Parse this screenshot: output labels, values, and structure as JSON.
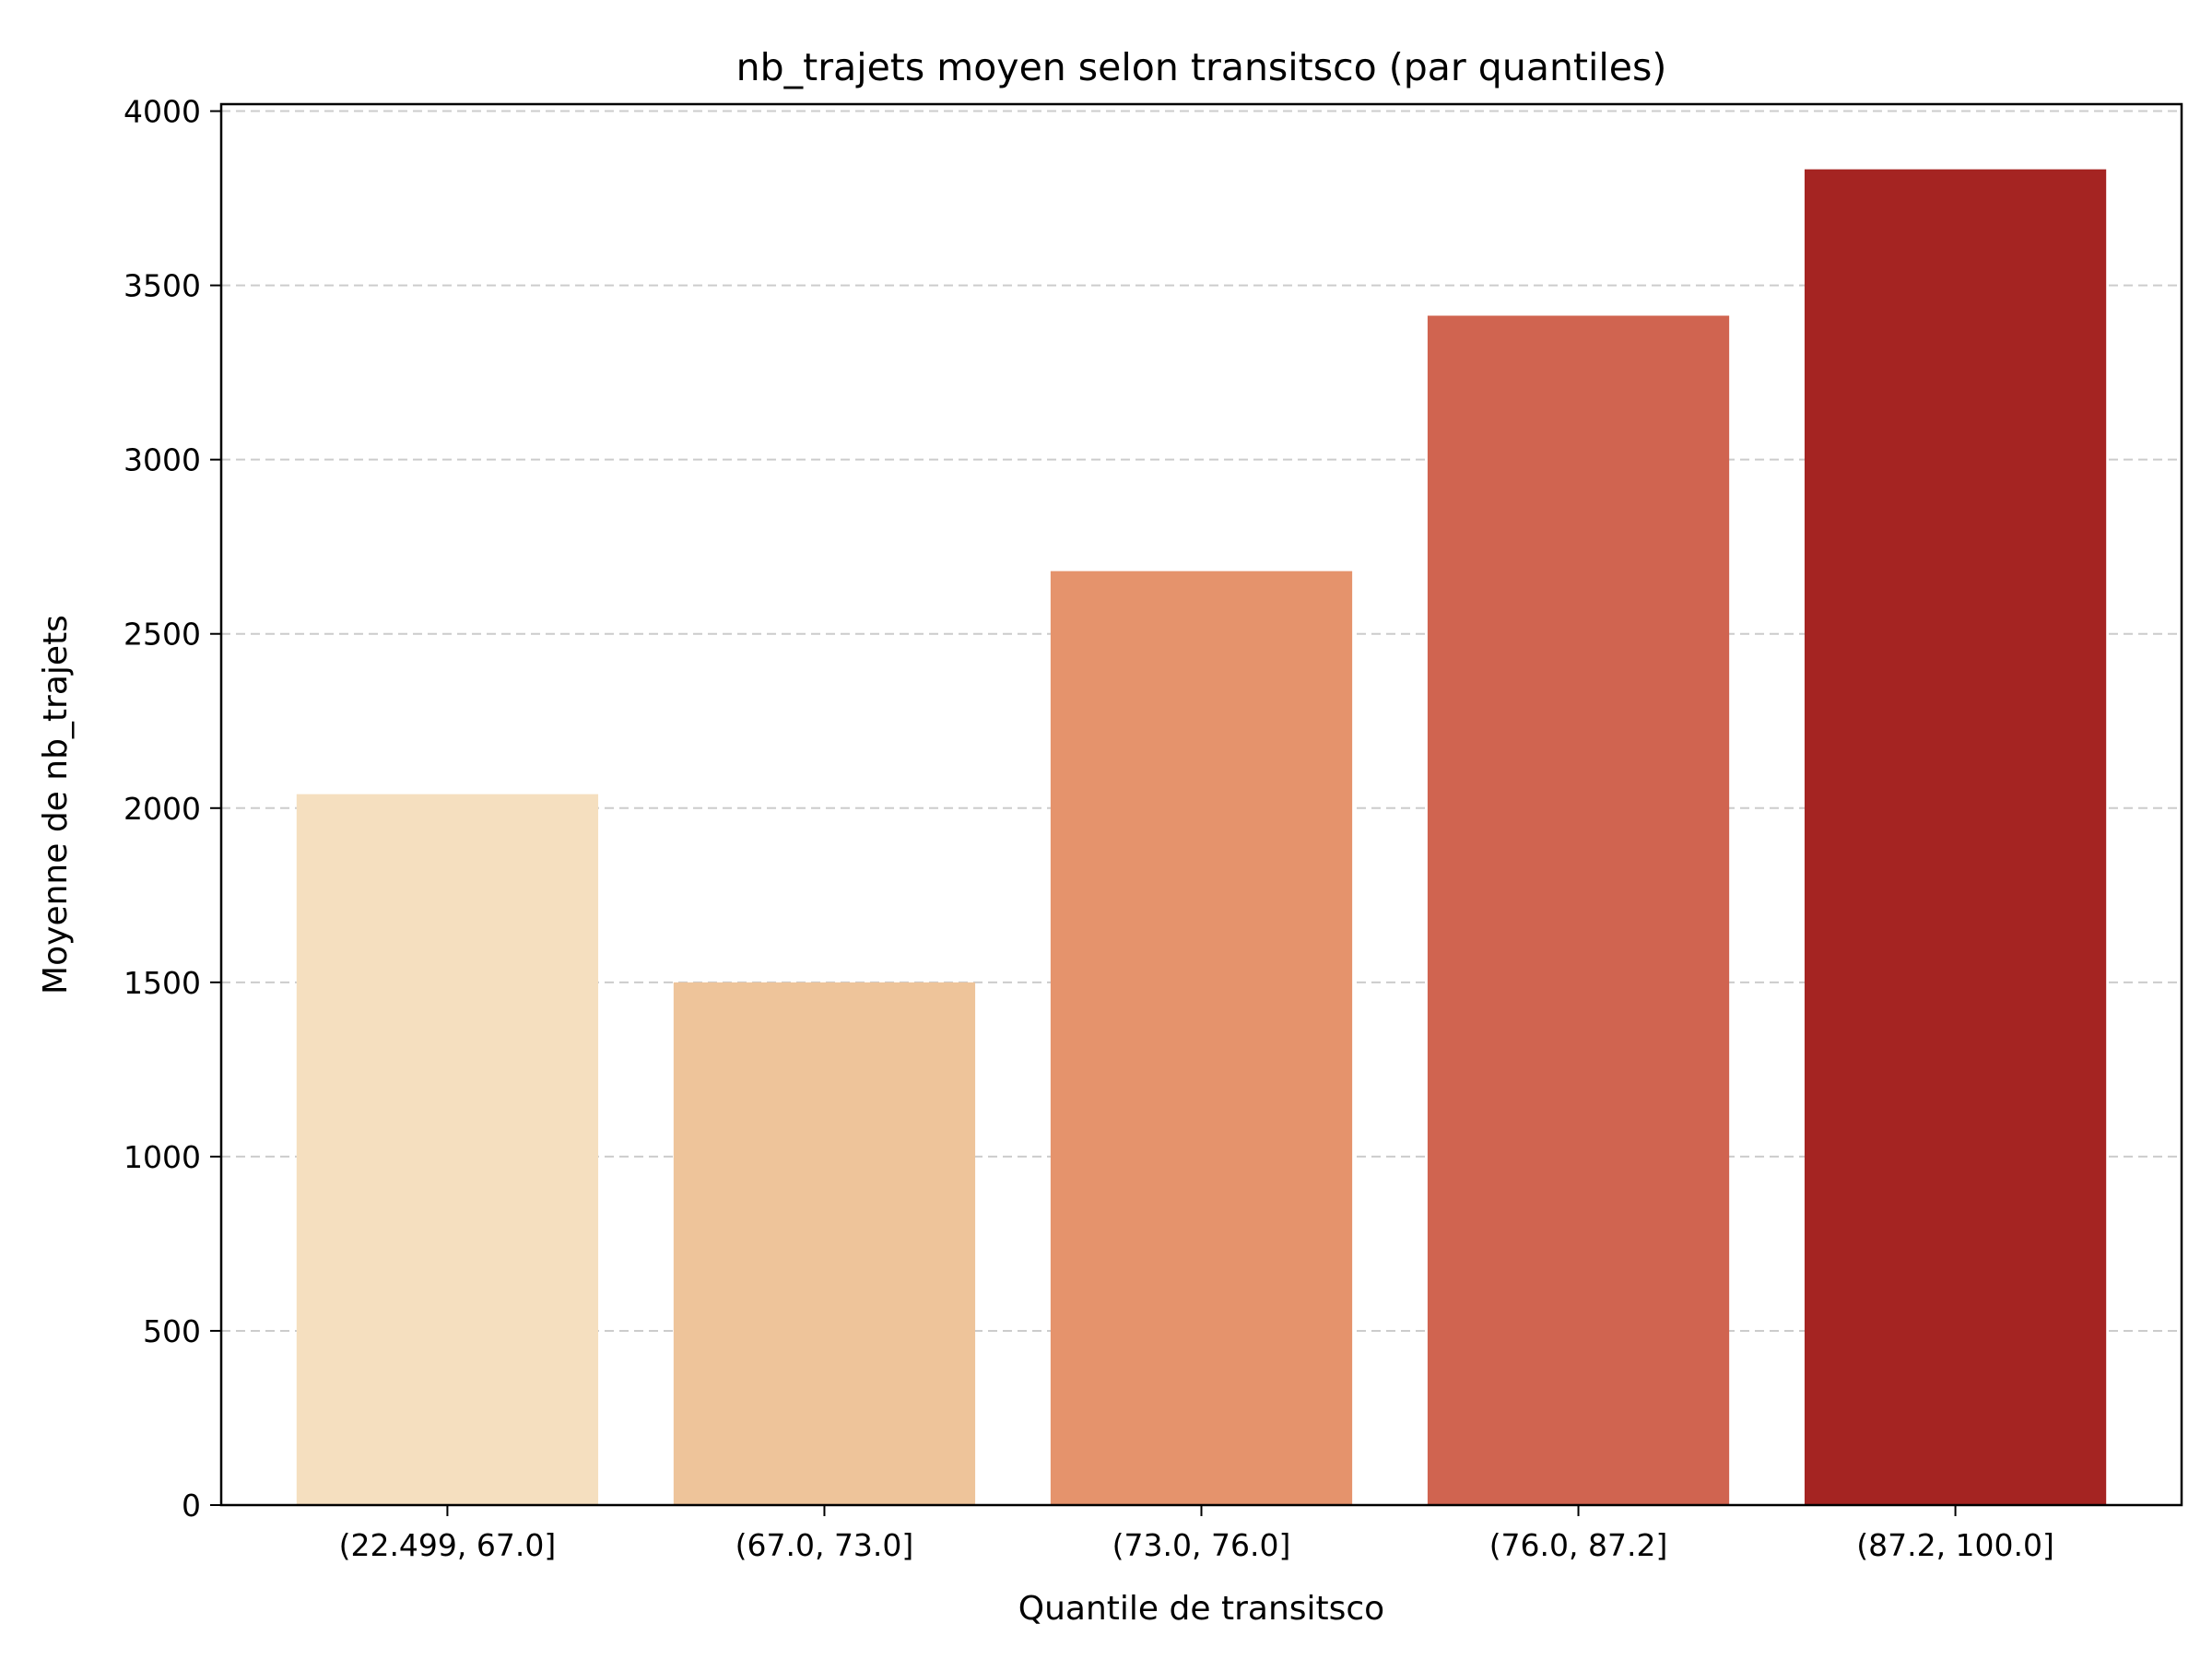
{
  "chart_data": {
    "type": "bar",
    "title": "nb_trajets moyen selon transitsco (par quantiles)",
    "xlabel": "Quantile de transitsco",
    "ylabel": "Moyenne de nb_trajets",
    "categories": [
      "(22.499, 67.0]",
      "(67.0, 73.0]",
      "(73.0, 76.0]",
      "(76.0, 87.2]",
      "(87.2, 100.0]"
    ],
    "values": [
      2040,
      1500,
      2680,
      3413,
      3833
    ],
    "colors": [
      "#f5dfbf",
      "#eec49a",
      "#e5936c",
      "#d06450",
      "#a52422"
    ],
    "ylim": [
      0,
      4020
    ],
    "yticks": [
      0,
      500,
      1000,
      1500,
      2000,
      2500,
      3000,
      3500,
      4000
    ],
    "ytick_labels": [
      "0",
      "500",
      "1000",
      "1500",
      "2000",
      "2500",
      "3000",
      "3500",
      "4000"
    ],
    "grid": "y-dashed",
    "legend": "none"
  }
}
